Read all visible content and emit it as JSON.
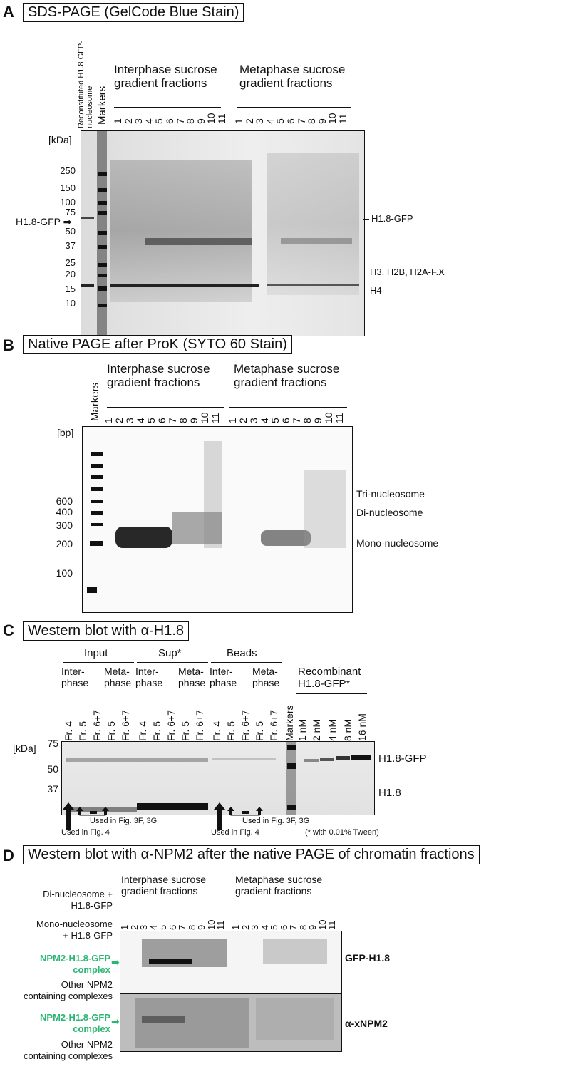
{
  "panelA": {
    "letter": "A",
    "title": "SDS-PAGE (GelCode Blue Stain)",
    "reconstituted_label": "Reconstituted H1.8 GFP-nucleosome",
    "markers_label": "Markers",
    "interphase_label": "Interphase sucrose gradient fractions",
    "metaphase_label": "Metaphase sucrose gradient fractions",
    "lanes": [
      "1",
      "2",
      "3",
      "4",
      "5",
      "6",
      "7",
      "8",
      "9",
      "10",
      "11"
    ],
    "unit": "[kDa]",
    "ticks": [
      "250",
      "150",
      "100",
      "75",
      "50",
      "37",
      "25",
      "20",
      "15",
      "10"
    ],
    "left_arrow_label": "H1.8-GFP",
    "right_labels": [
      "H1.8-GFP",
      "H3, H2B, H2A-F.X",
      "H4"
    ]
  },
  "panelB": {
    "letter": "B",
    "title": "Native PAGE after ProK (SYTO 60 Stain)",
    "markers_label": "Markers",
    "interphase_label": "Interphase sucrose gradient fractions",
    "metaphase_label": "Metaphase sucrose gradient fractions",
    "lanes": [
      "1",
      "2",
      "3",
      "4",
      "5",
      "6",
      "7",
      "8",
      "9",
      "10",
      "11"
    ],
    "unit": "[bp]",
    "ticks": [
      "600",
      "400",
      "300",
      "200",
      "100"
    ],
    "right_labels": [
      "Tri-nucleosome",
      "Di-nucleosome",
      "Mono-nucleosome"
    ]
  },
  "panelC": {
    "letter": "C",
    "title": "Western blot with α-H1.8",
    "groups": [
      "Input",
      "Sup*",
      "Beads"
    ],
    "inter": "Inter- phase",
    "meta": "Meta- phase",
    "recombinant": "Recombinant H1.8-GFP*",
    "lanes": [
      "Fr. 4",
      "Fr. 5",
      "Fr. 6+7",
      "Fr. 5",
      "Fr. 6+7",
      "Fr. 4",
      "Fr. 5",
      "Fr. 6+7",
      "Fr. 5",
      "Fr. 6+7",
      "Fr. 4",
      "Fr. 5",
      "Fr. 6+7",
      "Fr. 5",
      "Fr. 6+7",
      "Markers",
      "1 nM",
      "2 nM",
      "4 nM",
      "8 nM",
      "16 nM"
    ],
    "unit": "[kDa]",
    "ticks": [
      "75",
      "50",
      "37"
    ],
    "right_labels": [
      "H1.8-GFP",
      "H1.8"
    ],
    "used_fig3": "Used in Fig. 3F, 3G",
    "used_fig4": "Used in Fig. 4",
    "tween_note": "(* with 0.01% Tween)"
  },
  "panelD": {
    "letter": "D",
    "title": "Western blot with α-NPM2 after the native PAGE of chromatin fractions",
    "interphase_label": "Interphase sucrose gradient fractions",
    "metaphase_label": "Metaphase sucrose gradient fractions",
    "lanes": [
      "1",
      "2",
      "3",
      "4",
      "5",
      "6",
      "7",
      "8",
      "9",
      "10",
      "11"
    ],
    "di_label": "Di-nucleosome + H1.8-GFP",
    "mono_label": "Mono-nucleosome + H1.8-GFP",
    "complex_label": "NPM2-H1.8-GFP complex",
    "other_label": "Other NPM2 containing complexes",
    "blot1_label": "GFP-H1.8",
    "blot2_label": "α-xNPM2",
    "accent_green": "#2bb673"
  }
}
